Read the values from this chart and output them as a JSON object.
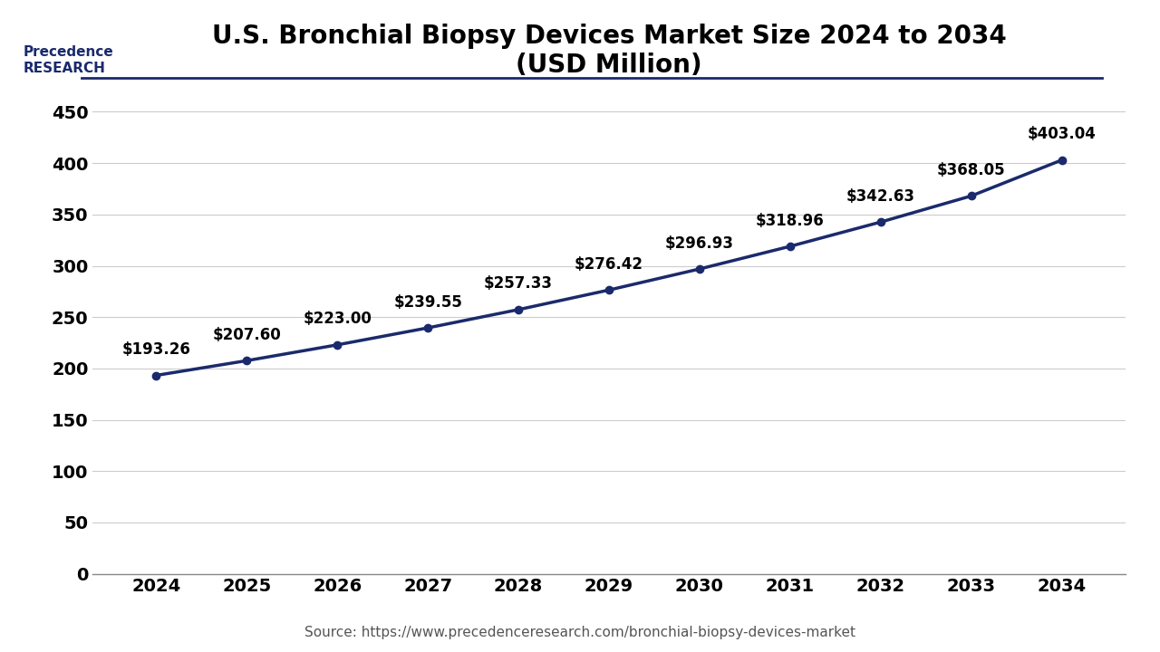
{
  "title_line1": "U.S. Bronchial Biopsy Devices Market Size 2024 to 2034",
  "title_line2": "(USD Million)",
  "source_text": "Source: https://www.precedenceresearch.com/bronchial-biopsy-devices-market",
  "years": [
    2024,
    2025,
    2026,
    2027,
    2028,
    2029,
    2030,
    2031,
    2032,
    2033,
    2034
  ],
  "values": [
    193.26,
    207.6,
    223.0,
    239.55,
    257.33,
    276.42,
    296.93,
    318.96,
    342.63,
    368.05,
    403.04
  ],
  "labels": [
    "$193.26",
    "$207.60",
    "$223.00",
    "$239.55",
    "$257.33",
    "$276.42",
    "$296.93",
    "$318.96",
    "$342.63",
    "$368.05",
    "$403.04"
  ],
  "line_color": "#1a2a6c",
  "marker_color": "#1a2a6c",
  "bg_color": "#ffffff",
  "plot_bg_color": "#ffffff",
  "grid_color": "#cccccc",
  "title_color": "#000000",
  "label_color": "#000000",
  "tick_color": "#000000",
  "source_color": "#555555",
  "ylim": [
    0,
    470
  ],
  "yticks": [
    0,
    50,
    100,
    150,
    200,
    250,
    300,
    350,
    400,
    450
  ],
  "title_fontsize": 20,
  "label_fontsize": 12,
  "tick_fontsize": 14,
  "source_fontsize": 11,
  "line_width": 2.5,
  "marker_size": 6
}
